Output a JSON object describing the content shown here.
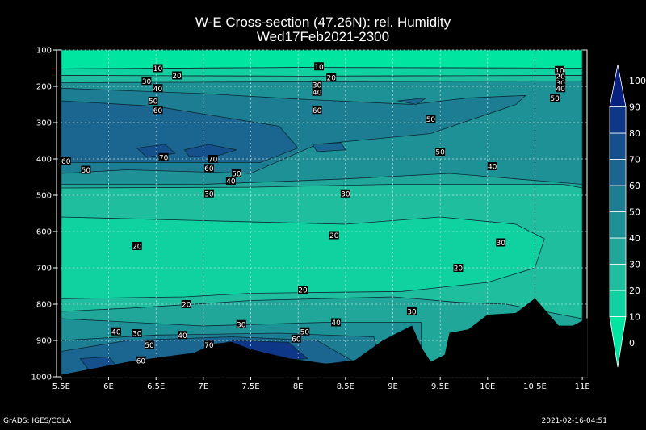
{
  "title": "W-E Cross-section (47.26N): rel. Humidity",
  "subtitle": "Wed17Feb2021-2300",
  "footer_left": "GrADS: IGES/COLA",
  "footer_right": "2021-02-16-04:51",
  "colors": {
    "c0_10": "#00e6a0",
    "c10_20": "#0fd2a0",
    "c20_30": "#1ebe9e",
    "c30_40": "#21a69a",
    "c40_50": "#1e9196",
    "c50_60": "#1d7d92",
    "c60_70": "#1a6690",
    "c70_80": "#154f8c",
    "c80_90": "#0e3788",
    "c90_100": "#082080",
    "terrain": "#000000"
  },
  "chart_data": {
    "type": "contour-filled cross-section",
    "variable": "rel. Humidity",
    "latitude": "47.26N",
    "x_ticks": [
      "5.5E",
      "6E",
      "6.5E",
      "7E",
      "7.5E",
      "8E",
      "8.5E",
      "9E",
      "9.5E",
      "10E",
      "10.5E",
      "11E"
    ],
    "x_values": [
      5.5,
      6,
      6.5,
      7,
      7.5,
      8,
      8.5,
      9,
      9.5,
      10,
      10.5,
      11
    ],
    "y_ticks": [
      "100",
      "200",
      "300",
      "400",
      "500",
      "600",
      "700",
      "800",
      "900",
      "1000"
    ],
    "y_values": [
      100,
      200,
      300,
      400,
      500,
      600,
      700,
      800,
      900,
      1000
    ],
    "xlim": [
      5.45,
      11.05
    ],
    "ylim": [
      1000,
      100
    ],
    "grid": true,
    "colorbar": {
      "levels": [
        "0",
        "10",
        "20",
        "30",
        "40",
        "50",
        "60",
        "70",
        "80",
        "90",
        "100"
      ],
      "position": "right"
    },
    "contour_labels": [
      {
        "text": "10",
        "lon": 6.02,
        "p": 150
      },
      {
        "text": "20",
        "lon": 6.22,
        "p": 170
      },
      {
        "text": "30",
        "lon": 5.9,
        "p": 185
      },
      {
        "text": "40",
        "lon": 6.02,
        "p": 205
      },
      {
        "text": "50",
        "lon": 5.97,
        "p": 240
      },
      {
        "text": "60",
        "lon": 6.02,
        "p": 265
      },
      {
        "text": "10",
        "lon": 7.72,
        "p": 145
      },
      {
        "text": "20",
        "lon": 7.85,
        "p": 175
      },
      {
        "text": "30",
        "lon": 7.7,
        "p": 195
      },
      {
        "text": "40",
        "lon": 7.7,
        "p": 215
      },
      {
        "text": "60",
        "lon": 7.7,
        "p": 265
      },
      {
        "text": "10",
        "lon": 10.26,
        "p": 155
      },
      {
        "text": "20",
        "lon": 10.27,
        "p": 172
      },
      {
        "text": "30",
        "lon": 10.27,
        "p": 190
      },
      {
        "text": "40",
        "lon": 10.27,
        "p": 205
      },
      {
        "text": "50",
        "lon": 10.21,
        "p": 232
      },
      {
        "text": "50",
        "lon": 8.9,
        "p": 290
      },
      {
        "text": "50",
        "lon": 9.0,
        "p": 380
      },
      {
        "text": "40",
        "lon": 9.55,
        "p": 420
      },
      {
        "text": "60",
        "lon": 5.05,
        "p": 405
      },
      {
        "text": "70",
        "lon": 6.08,
        "p": 395
      },
      {
        "text": "70",
        "lon": 6.6,
        "p": 400
      },
      {
        "text": "50",
        "lon": 5.26,
        "p": 430
      },
      {
        "text": "60",
        "lon": 6.56,
        "p": 425
      },
      {
        "text": "50",
        "lon": 6.85,
        "p": 440
      },
      {
        "text": "40",
        "lon": 6.79,
        "p": 460
      },
      {
        "text": "30",
        "lon": 6.56,
        "p": 495
      },
      {
        "text": "30",
        "lon": 8.0,
        "p": 495
      },
      {
        "text": "20",
        "lon": 5.8,
        "p": 640
      },
      {
        "text": "20",
        "lon": 7.88,
        "p": 610
      },
      {
        "text": "20",
        "lon": 9.19,
        "p": 700
      },
      {
        "text": "30",
        "lon": 9.64,
        "p": 630
      },
      {
        "text": "20",
        "lon": 7.55,
        "p": 760
      },
      {
        "text": "20",
        "lon": 6.32,
        "p": 800
      },
      {
        "text": "30",
        "lon": 8.7,
        "p": 820
      },
      {
        "text": "30",
        "lon": 5.8,
        "p": 880
      },
      {
        "text": "40",
        "lon": 5.58,
        "p": 875
      },
      {
        "text": "30",
        "lon": 6.9,
        "p": 855
      },
      {
        "text": "40",
        "lon": 6.28,
        "p": 885
      },
      {
        "text": "40",
        "lon": 7.9,
        "p": 850
      },
      {
        "text": "50",
        "lon": 7.57,
        "p": 875
      },
      {
        "text": "50",
        "lon": 5.93,
        "p": 912
      },
      {
        "text": "60",
        "lon": 7.48,
        "p": 895
      },
      {
        "text": "70",
        "lon": 6.56,
        "p": 912
      },
      {
        "text": "60",
        "lon": 5.84,
        "p": 955
      }
    ]
  }
}
